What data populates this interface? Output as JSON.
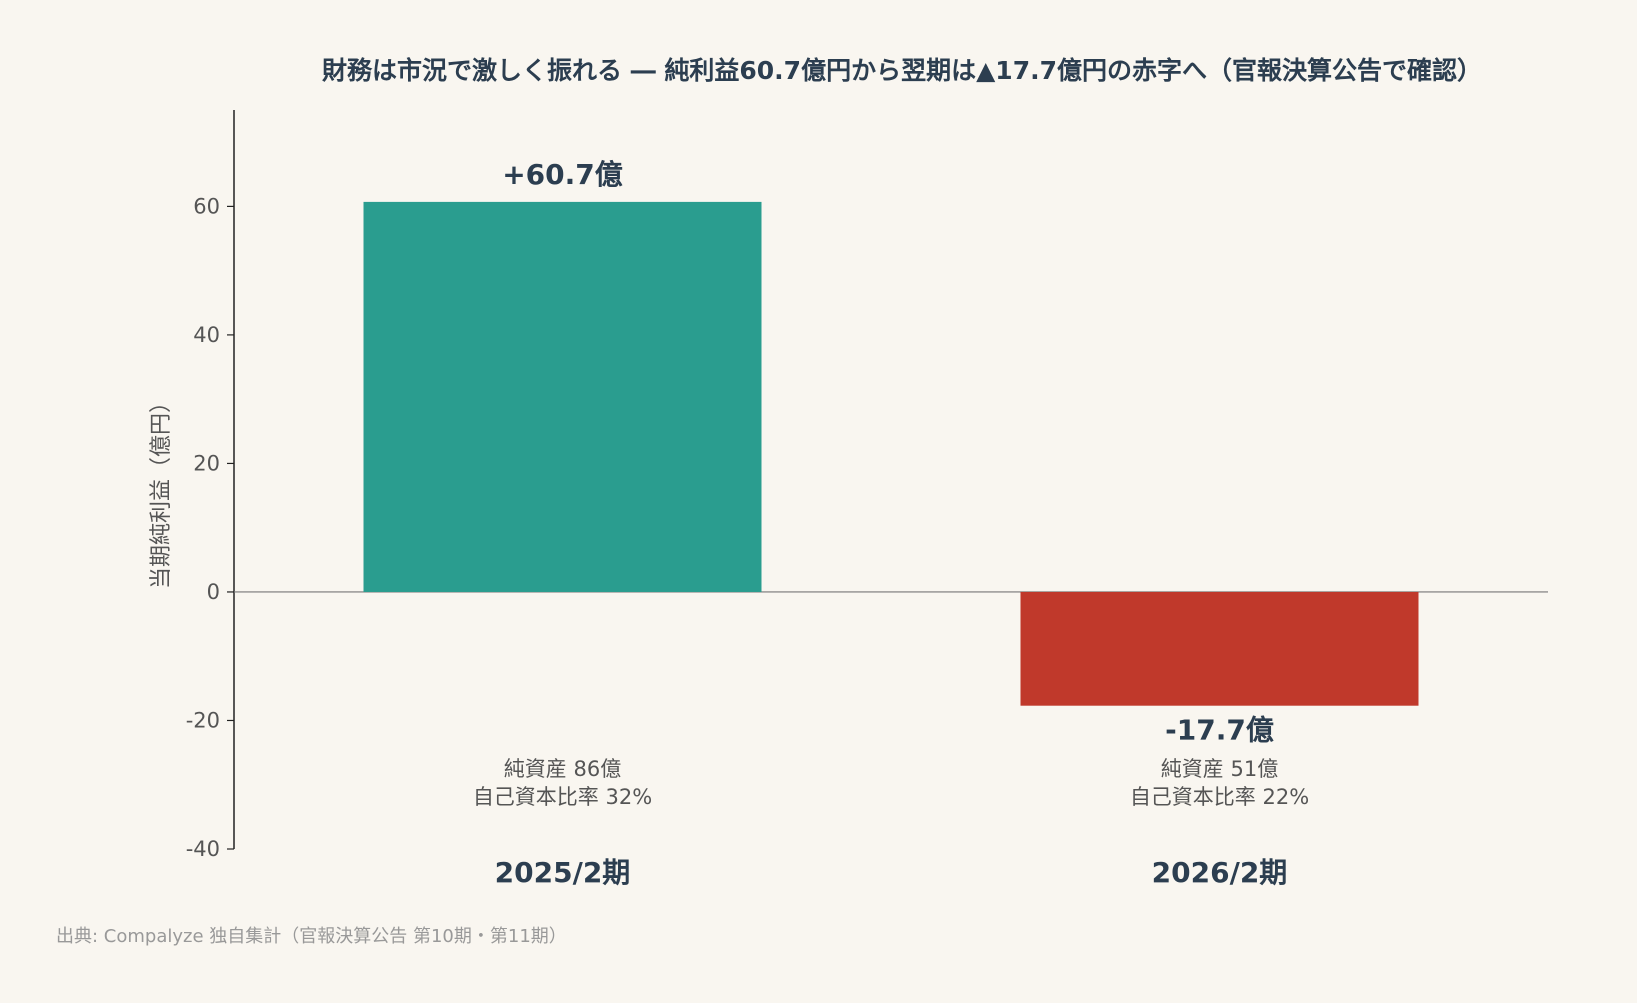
{
  "chart_data": {
    "type": "bar",
    "title": "財務は市況で激しく振れる ― 純利益60.7億円から翌期は▲17.7億円の赤字へ（官報決算公告で確認）",
    "ylabel": "当期純利益（億円）",
    "xlabel": "",
    "categories": [
      "2025/2期",
      "2026/2期"
    ],
    "values": [
      60.7,
      -17.7
    ],
    "value_labels": [
      "+60.7億",
      "-17.7億"
    ],
    "ylim": [
      -40,
      75
    ],
    "yticks": [
      -40,
      -20,
      0,
      20,
      40,
      60
    ],
    "colors": [
      "#2a9d8f",
      "#c0392b"
    ],
    "annotations": [
      {
        "net_assets": "純資産 86億",
        "equity_ratio": "自己資本比率 32%"
      },
      {
        "net_assets": "純資産 51億",
        "equity_ratio": "自己資本比率 22%"
      }
    ],
    "grid": false,
    "legend": "none"
  },
  "source": "出典: Compalyze 独自集計（官報決算公告 第10期・第11期）"
}
